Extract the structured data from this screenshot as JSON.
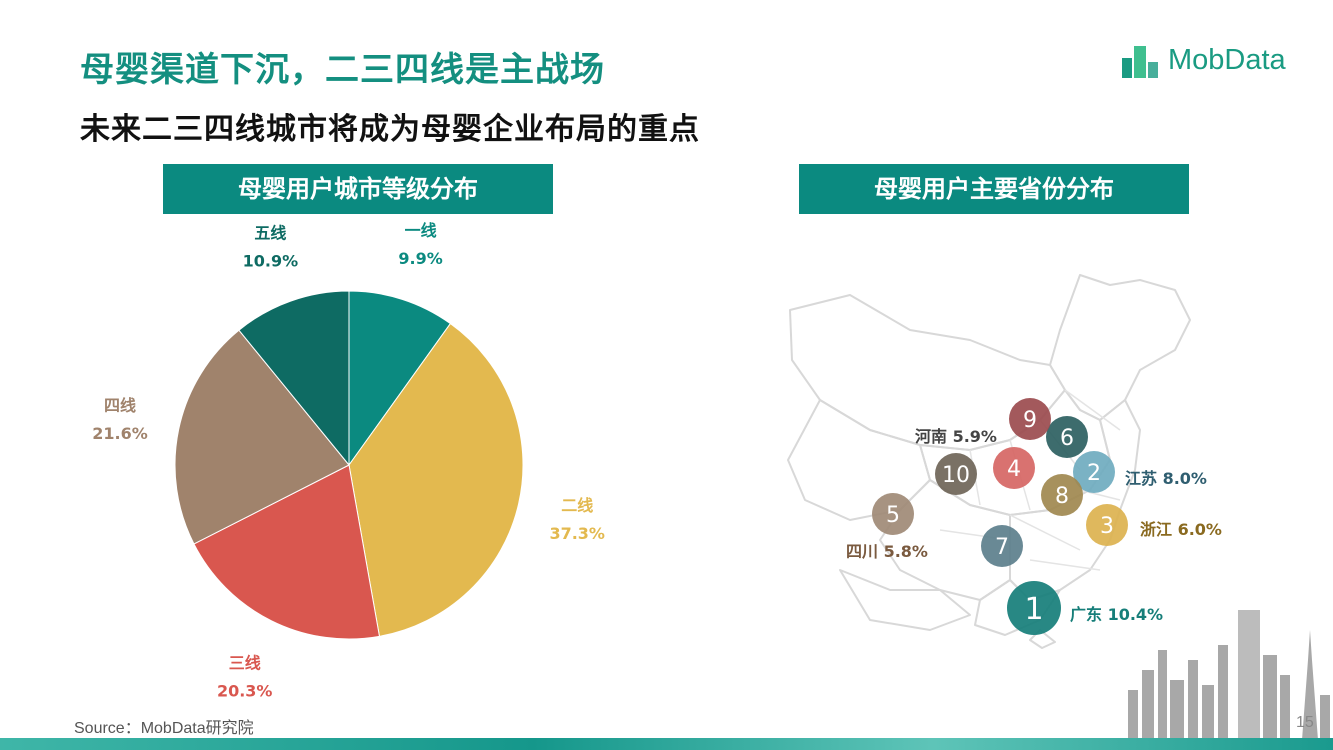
{
  "page": {
    "title": "母婴渠道下沉，二三四线是主战场",
    "subtitle": "未来二三四线城市将成为母婴企业布局的重点",
    "source": "Source：MobData研究院",
    "page_number": "15"
  },
  "logo": {
    "text": "MobData",
    "color": "#1a9b82"
  },
  "panels": {
    "left_header": "母婴用户城市等级分布",
    "right_header": "母婴用户主要省份分布"
  },
  "chart_data": [
    {
      "type": "pie",
      "title": "母婴用户城市等级分布",
      "categories": [
        "一线",
        "二线",
        "三线",
        "四线",
        "五线"
      ],
      "values": [
        9.9,
        37.3,
        20.3,
        21.6,
        10.9
      ],
      "value_labels": [
        "9.9%",
        "37.3%",
        "20.3%",
        "21.6%",
        "10.9%"
      ],
      "colors": [
        "#0b8a80",
        "#e3b94f",
        "#d9574f",
        "#a0836c",
        "#0e6b63"
      ],
      "start": "12 o'clock, clockwise",
      "legend": "none"
    },
    {
      "type": "table",
      "title": "母婴用户主要省份分布",
      "ranked_markers": [
        {
          "rank": "1",
          "color": "#167e79"
        },
        {
          "rank": "2",
          "color": "#6fabbf"
        },
        {
          "rank": "3",
          "color": "#dcb24f"
        },
        {
          "rank": "4",
          "color": "#d66664"
        },
        {
          "rank": "5",
          "color": "#a08a76"
        },
        {
          "rank": "6",
          "color": "#2d5f61"
        },
        {
          "rank": "7",
          "color": "#5c7f8c"
        },
        {
          "rank": "8",
          "color": "#a0884f"
        },
        {
          "rank": "9",
          "color": "#9b4b4e"
        },
        {
          "rank": "10",
          "color": "#6f6558"
        }
      ],
      "labels": [
        {
          "province": "广东",
          "value": "10.4%",
          "color": "#167e79"
        },
        {
          "province": "江苏",
          "value": "8.0%",
          "color": "#2f5e70"
        },
        {
          "province": "浙江",
          "value": "6.0%",
          "color": "#8a6a20"
        },
        {
          "province": "四川",
          "value": "5.8%",
          "color": "#7a5a3f"
        },
        {
          "province": "河南",
          "value": "5.9%",
          "color": "#444444"
        }
      ]
    }
  ]
}
